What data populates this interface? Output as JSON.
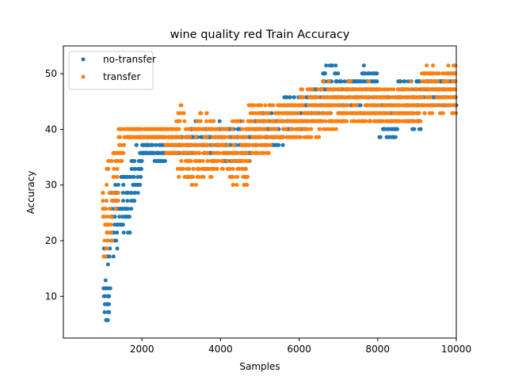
{
  "chart_data": {
    "type": "scatter",
    "title": "wine quality red Train Accuracy",
    "xlabel": "Samples",
    "ylabel": "Accuracy",
    "xlim": [
      0,
      10000
    ],
    "ylim": [
      2.5,
      55
    ],
    "xticks": [
      2000,
      4000,
      6000,
      8000,
      10000
    ],
    "yticks": [
      10,
      20,
      30,
      40,
      50
    ],
    "grid": false,
    "legend_position": "upper-left",
    "series": [
      {
        "name": "no-transfer",
        "color": "#1f77b4",
        "clusters": [
          {
            "x": [
              1000,
              1200
            ],
            "y": [
              5,
              20
            ]
          },
          {
            "x": [
              1200,
              1450
            ],
            "y": [
              17,
              30
            ]
          },
          {
            "x": [
              1450,
              1700
            ],
            "y": [
              21,
              32
            ]
          },
          {
            "x": [
              1700,
              1850
            ],
            "y": [
              26,
              35
            ]
          },
          {
            "x": [
              1850,
              2000
            ],
            "y": [
              29,
              37
            ]
          },
          {
            "x": [
              2000,
              2300
            ],
            "y": [
              35,
              38
            ]
          },
          {
            "x": [
              2300,
              2600
            ],
            "y": [
              34,
              39
            ]
          },
          {
            "x": [
              2600,
              3200
            ],
            "y": [
              35,
              39
            ]
          },
          {
            "x": [
              3200,
              4000
            ],
            "y": [
              36,
              41
            ]
          },
          {
            "x": [
              4000,
              4800
            ],
            "y": [
              34,
              41
            ]
          },
          {
            "x": [
              4800,
              5600
            ],
            "y": [
              37,
              43
            ]
          },
          {
            "x": [
              5600,
              6200
            ],
            "y": [
              40,
              46
            ]
          },
          {
            "x": [
              6200,
              6600
            ],
            "y": [
              41,
              48
            ]
          },
          {
            "x": [
              6600,
              7000
            ],
            "y": [
              42,
              52
            ]
          },
          {
            "x": [
              7000,
              7600
            ],
            "y": [
              43,
              49
            ]
          },
          {
            "x": [
              7600,
              8000
            ],
            "y": [
              43,
              51
            ]
          },
          {
            "x": [
              8000,
              8500
            ],
            "y": [
              38,
              46
            ]
          },
          {
            "x": [
              8500,
              9100
            ],
            "y": [
              40,
              49
            ]
          },
          {
            "x": [
              9100,
              10000
            ],
            "y": [
              44,
              49
            ]
          }
        ]
      },
      {
        "name": "transfer",
        "color": "#ff7f0e",
        "clusters": [
          {
            "x": [
              1000,
              1100
            ],
            "y": [
              16,
              29
            ]
          },
          {
            "x": [
              1100,
              1250
            ],
            "y": [
              19,
              35
            ]
          },
          {
            "x": [
              1250,
              1400
            ],
            "y": [
              25,
              37
            ]
          },
          {
            "x": [
              1400,
              1550
            ],
            "y": [
              34,
              41
            ]
          },
          {
            "x": [
              1550,
              2600
            ],
            "y": [
              38,
              40
            ]
          },
          {
            "x": [
              2600,
              2900
            ],
            "y": [
              35,
              41
            ]
          },
          {
            "x": [
              2900,
              3100
            ],
            "y": [
              31,
              44
            ]
          },
          {
            "x": [
              3100,
              3400
            ],
            "y": [
              30,
              41
            ]
          },
          {
            "x": [
              3400,
              3800
            ],
            "y": [
              31,
              43
            ]
          },
          {
            "x": [
              3800,
              4200
            ],
            "y": [
              33,
              41
            ]
          },
          {
            "x": [
              4200,
              4700
            ],
            "y": [
              30,
              42
            ]
          },
          {
            "x": [
              4700,
              5300
            ],
            "y": [
              35,
              45
            ]
          },
          {
            "x": [
              5300,
              6000
            ],
            "y": [
              38,
              45
            ]
          },
          {
            "x": [
              6000,
              6600
            ],
            "y": [
              38,
              47
            ]
          },
          {
            "x": [
              6600,
              7000
            ],
            "y": [
              40,
              48
            ]
          },
          {
            "x": [
              7000,
              7500
            ],
            "y": [
              41,
              48
            ]
          },
          {
            "x": [
              7500,
              8000
            ],
            "y": [
              41,
              48
            ]
          },
          {
            "x": [
              8000,
              8500
            ],
            "y": [
              41,
              47
            ]
          },
          {
            "x": [
              8500,
              9100
            ],
            "y": [
              41,
              48
            ]
          },
          {
            "x": [
              9100,
              10000
            ],
            "y": [
              43,
              51
            ]
          }
        ]
      }
    ]
  }
}
